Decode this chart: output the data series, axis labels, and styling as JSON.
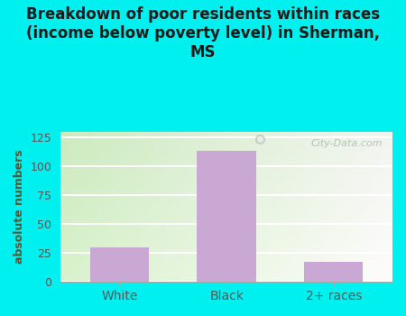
{
  "title": "Breakdown of poor residents within races\n(income below poverty level) in Sherman,\nMS",
  "categories": [
    "White",
    "Black",
    "2+ races"
  ],
  "values": [
    30,
    113,
    17
  ],
  "bar_color": "#c9a8d4",
  "ylabel": "absolute numbers",
  "ylim": [
    0,
    130
  ],
  "yticks": [
    0,
    25,
    50,
    75,
    100,
    125
  ],
  "fig_bg": "#00f0f0",
  "plot_bg_topleft": "#d8eec8",
  "plot_bg_topright": "#f8fef4",
  "plot_bg_bottom": "#f0faf0",
  "title_color": "#1a1a1a",
  "title_fontsize": 12,
  "ylabel_color": "#555533",
  "ylabel_fontsize": 9,
  "tick_color": "#555555",
  "grid_color": "#ffffff",
  "watermark": "City-Data.com",
  "watermark_color": "#aabbaa"
}
